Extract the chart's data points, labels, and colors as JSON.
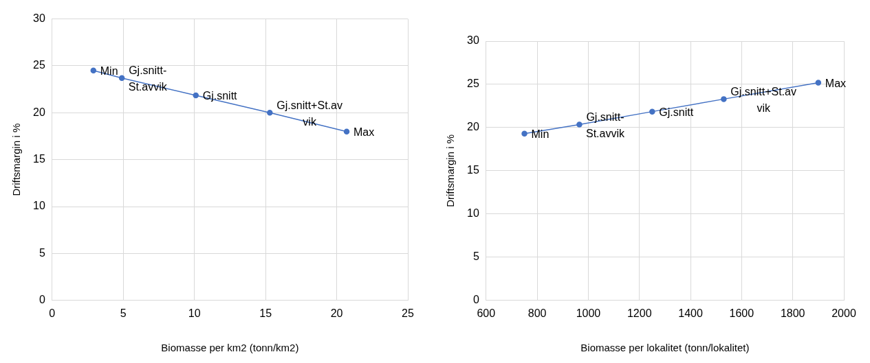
{
  "chart_data": [
    {
      "type": "line",
      "xlabel": "Biomasse per km2 (tonn/km2)",
      "ylabel": "Driftsmargin i %",
      "x": [
        2.9,
        4.9,
        10.1,
        15.3,
        20.7
      ],
      "values": [
        24.5,
        23.7,
        21.85,
        20.0,
        18.0
      ],
      "color": "#4472c4",
      "marker": "circle",
      "xlim": [
        0,
        25
      ],
      "xticks": [
        0,
        5,
        10,
        15,
        20,
        25
      ],
      "ylim": [
        0,
        30
      ],
      "yticks": [
        0,
        5,
        10,
        15,
        20,
        25,
        30
      ],
      "grid": true,
      "annotations": [
        {
          "text": "Min",
          "x": 2.9,
          "y": 24.5
        },
        {
          "text": "Gj.snitt-\nSt.avvik",
          "x": 4.9,
          "y": 23.7
        },
        {
          "text": "Gj.snitt",
          "x": 10.1,
          "y": 21.85
        },
        {
          "text": "Gj.snitt+St.av\nvik",
          "x": 15.3,
          "y": 20.0
        },
        {
          "text": "Max",
          "x": 20.7,
          "y": 18.0
        }
      ]
    },
    {
      "type": "line",
      "xlabel": "Biomasse per lokalitet (tonn/lokalitet)",
      "ylabel": "Driftsmargin i %",
      "x": [
        750,
        965,
        1250,
        1530,
        1900
      ],
      "values": [
        19.3,
        20.35,
        21.85,
        23.3,
        25.2
      ],
      "color": "#4472c4",
      "marker": "circle",
      "xlim": [
        600,
        2000
      ],
      "xticks": [
        600,
        800,
        1000,
        1200,
        1400,
        1600,
        1800,
        2000
      ],
      "ylim": [
        0,
        30
      ],
      "yticks": [
        0,
        5,
        10,
        15,
        20,
        25,
        30
      ],
      "grid": true,
      "annotations": [
        {
          "text": "Min",
          "x": 750,
          "y": 19.3
        },
        {
          "text": "Gj.snitt-\nSt.avvik",
          "x": 965,
          "y": 20.35
        },
        {
          "text": "Gj.snitt",
          "x": 1250,
          "y": 21.85
        },
        {
          "text": "Gj.snitt+St.av\nvik",
          "x": 1530,
          "y": 23.3
        },
        {
          "text": "Max",
          "x": 1900,
          "y": 25.2
        }
      ]
    }
  ]
}
